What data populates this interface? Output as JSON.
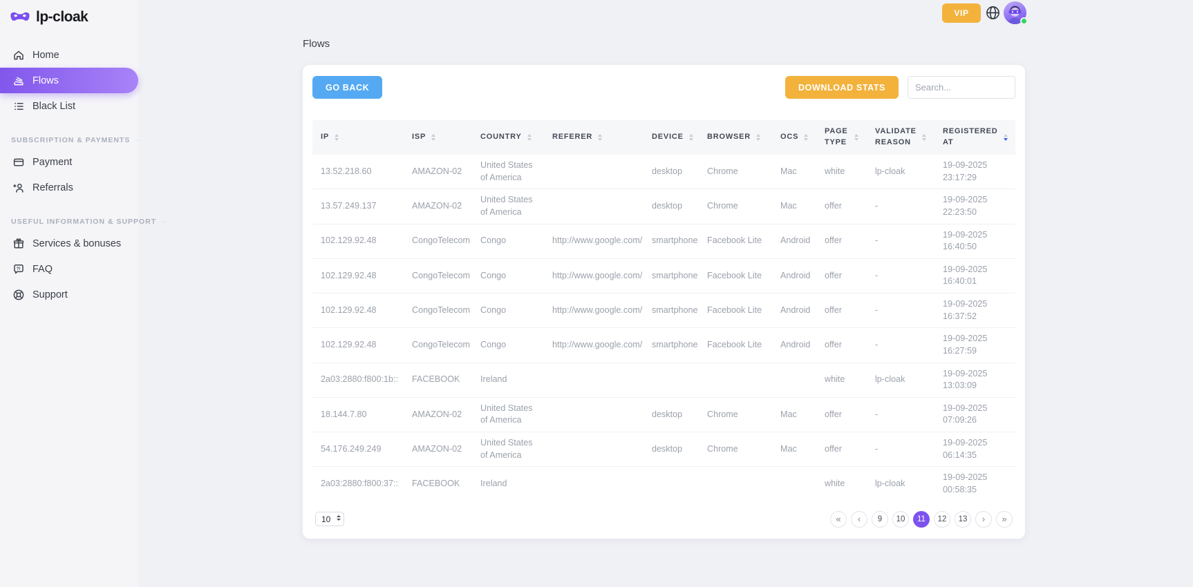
{
  "brand": {
    "name": "lp-cloak",
    "logo_icon": "mask-icon"
  },
  "topbar": {
    "vip_button": "VIP",
    "language_icon": "globe-icon",
    "avatar_status": "online"
  },
  "sidebar": {
    "sections": [
      {
        "header": "",
        "items": [
          {
            "label": "Home",
            "icon": "home-icon",
            "active": false
          },
          {
            "label": "Flows",
            "icon": "flows-icon",
            "active": true
          },
          {
            "label": "Black List",
            "icon": "black-list-icon",
            "active": false
          }
        ]
      },
      {
        "header": "SUBSCRIPTION & PAYMENTS",
        "items": [
          {
            "label": "Payment",
            "icon": "payment-icon",
            "active": false
          },
          {
            "label": "Referrals",
            "icon": "referrals-icon",
            "active": false
          }
        ]
      },
      {
        "header": "USEFUL INFORMATION & SUPPORT",
        "items": [
          {
            "label": "Services & bonuses",
            "icon": "gift-icon",
            "active": false
          },
          {
            "label": "FAQ",
            "icon": "faq-icon",
            "active": false
          },
          {
            "label": "Support",
            "icon": "support-icon",
            "active": false
          }
        ]
      }
    ]
  },
  "main": {
    "page_title": "Flows",
    "toolbar": {
      "go_back_button": "GO BACK",
      "download_stats_button": "DOWNLOAD STATS",
      "search_placeholder": "Search..."
    },
    "table": {
      "columns": [
        {
          "label": "IP",
          "sorted": ""
        },
        {
          "label": "ISP",
          "sorted": ""
        },
        {
          "label": "COUNTRY",
          "sorted": ""
        },
        {
          "label": "REFERER",
          "sorted": ""
        },
        {
          "label": "DEVICE",
          "sorted": ""
        },
        {
          "label": "BROWSER",
          "sorted": ""
        },
        {
          "label": "OCS",
          "sorted": ""
        },
        {
          "label": "PAGE TYPE",
          "sorted": ""
        },
        {
          "label": "VALIDATE REASON",
          "sorted": ""
        },
        {
          "label": "REGISTERED AT",
          "sorted": "desc"
        }
      ],
      "rows": [
        [
          "13.52.218.60",
          "AMAZON-02",
          "United States of America",
          "",
          "desktop",
          "Chrome",
          "Mac",
          "white",
          "lp-cloak",
          "19-09-2025 23:17:29"
        ],
        [
          "13.57.249.137",
          "AMAZON-02",
          "United States of America",
          "",
          "desktop",
          "Chrome",
          "Mac",
          "offer",
          "-",
          "19-09-2025 22:23:50"
        ],
        [
          "102.129.92.48",
          "CongoTelecom",
          "Congo",
          "http://www.google.com/",
          "smartphone",
          "Facebook Lite",
          "Android",
          "offer",
          "-",
          "19-09-2025 16:40:50"
        ],
        [
          "102.129.92.48",
          "CongoTelecom",
          "Congo",
          "http://www.google.com/",
          "smartphone",
          "Facebook Lite",
          "Android",
          "offer",
          "-",
          "19-09-2025 16:40:01"
        ],
        [
          "102.129.92.48",
          "CongoTelecom",
          "Congo",
          "http://www.google.com/",
          "smartphone",
          "Facebook Lite",
          "Android",
          "offer",
          "-",
          "19-09-2025 16:37:52"
        ],
        [
          "102.129.92.48",
          "CongoTelecom",
          "Congo",
          "http://www.google.com/",
          "smartphone",
          "Facebook Lite",
          "Android",
          "offer",
          "-",
          "19-09-2025 16:27:59"
        ],
        [
          "2a03:2880:f800:1b::",
          "FACEBOOK",
          "Ireland",
          "",
          "",
          "",
          "",
          "white",
          "lp-cloak",
          "19-09-2025 13:03:09"
        ],
        [
          "18.144.7.80",
          "AMAZON-02",
          "United States of America",
          "",
          "desktop",
          "Chrome",
          "Mac",
          "offer",
          "-",
          "19-09-2025 07:09:26"
        ],
        [
          "54.176.249.249",
          "AMAZON-02",
          "United States of America",
          "",
          "desktop",
          "Chrome",
          "Mac",
          "offer",
          "-",
          "19-09-2025 06:14:35"
        ],
        [
          "2a03:2880:f800:37::",
          "FACEBOOK",
          "Ireland",
          "",
          "",
          "",
          "",
          "white",
          "lp-cloak",
          "19-09-2025 00:58:35"
        ]
      ]
    },
    "pagination": {
      "page_size": "10",
      "items": [
        {
          "type": "first",
          "label": "«"
        },
        {
          "type": "prev",
          "label": "‹"
        },
        {
          "type": "page",
          "label": "9"
        },
        {
          "type": "page",
          "label": "10"
        },
        {
          "type": "page",
          "label": "11",
          "active": true
        },
        {
          "type": "page",
          "label": "12"
        },
        {
          "type": "page",
          "label": "13"
        },
        {
          "type": "next",
          "label": "›"
        },
        {
          "type": "last",
          "label": "»"
        }
      ]
    }
  },
  "colors": {
    "accent_purple": "#7e52ef",
    "button_blue": "#54a9f2",
    "button_orange": "#f2b23c",
    "online_green": "#35d461",
    "sort_active_blue": "#3b5bf0"
  }
}
